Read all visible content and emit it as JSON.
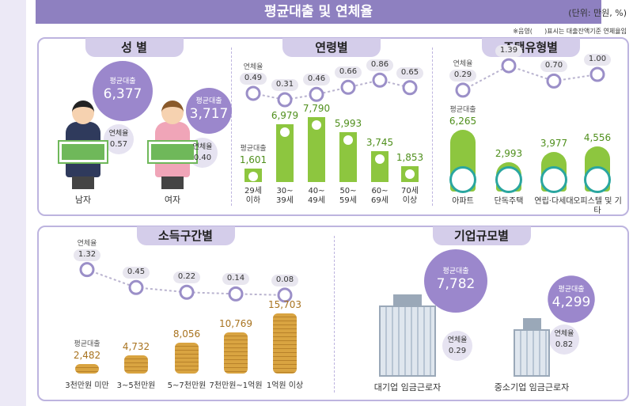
{
  "header": {
    "title": "평균대출 및 연체율",
    "unit": "(단위: 만원, %)",
    "note": "※음영(      )표시는 대출잔액기준 연체율임"
  },
  "chart_data": [
    {
      "type": "pictogram",
      "title": "성 별",
      "categories": [
        "남자",
        "여자"
      ],
      "series": [
        {
          "name": "평균대출",
          "color": "#9b87cc",
          "values": [
            6377,
            3717
          ],
          "value_labels": [
            "6,377",
            "3,717"
          ]
        },
        {
          "name": "연체율",
          "color": "#e6e3f1",
          "values": [
            0.57,
            0.4
          ],
          "value_labels": [
            "0.57",
            "0.40"
          ]
        }
      ]
    },
    {
      "type": "bar",
      "title": "연령별",
      "categories": [
        "29세\n이하",
        "30~\n39세",
        "40~\n49세",
        "50~\n59세",
        "60~\n69세",
        "70세\n이상"
      ],
      "series": [
        {
          "name": "평균대출",
          "color": "#8dc63f",
          "values": [
            1601,
            6979,
            7790,
            5993,
            3745,
            1853
          ],
          "value_labels": [
            "1,601",
            "6,979",
            "7,790",
            "5,993",
            "3,745",
            "1,853"
          ]
        },
        {
          "name": "연체율",
          "color": "#9b8fc8",
          "values": [
            0.49,
            0.31,
            0.46,
            0.66,
            0.86,
            0.65
          ],
          "value_labels": [
            "0.49",
            "0.31",
            "0.46",
            "0.66",
            "0.86",
            "0.65"
          ]
        }
      ]
    },
    {
      "type": "bar",
      "title": "주택유형별",
      "categories": [
        "아파트",
        "단독주택",
        "연립·다세대",
        "오피스텔 및 기타"
      ],
      "series": [
        {
          "name": "평균대출",
          "color": "#8dc63f",
          "values": [
            6265,
            2993,
            3977,
            4556
          ],
          "value_labels": [
            "6,265",
            "2,993",
            "3,977",
            "4,556"
          ]
        },
        {
          "name": "연체율",
          "color": "#9b8fc8",
          "values": [
            0.29,
            1.39,
            0.7,
            1.0
          ],
          "value_labels": [
            "0.29",
            "1.39",
            "0.70",
            "1.00"
          ]
        }
      ]
    },
    {
      "type": "bar",
      "title": "소득구간별",
      "categories": [
        "3천만원 미만",
        "3~5천만원",
        "5~7천만원",
        "7천만원~1억원",
        "1억원 이상"
      ],
      "series": [
        {
          "name": "평균대출",
          "color": "#d9a441",
          "values": [
            2482,
            4732,
            8056,
            10769,
            15703
          ],
          "value_labels": [
            "2,482",
            "4,732",
            "8,056",
            "10,769",
            "15,703"
          ]
        },
        {
          "name": "연체율",
          "color": "#9b8fc8",
          "values": [
            1.32,
            0.45,
            0.22,
            0.14,
            0.08
          ],
          "value_labels": [
            "1.32",
            "0.45",
            "0.22",
            "0.14",
            "0.08"
          ]
        }
      ]
    },
    {
      "type": "pictogram",
      "title": "기업규모별",
      "categories": [
        "대기업 임금근로자",
        "중소기업 임금근로자"
      ],
      "series": [
        {
          "name": "평균대출",
          "color": "#9b87cc",
          "values": [
            7782,
            4299
          ],
          "value_labels": [
            "7,782",
            "4,299"
          ]
        },
        {
          "name": "연체율",
          "color": "#e6e3f1",
          "values": [
            0.29,
            0.82
          ],
          "value_labels": [
            "0.29",
            "0.82"
          ]
        }
      ]
    }
  ]
}
